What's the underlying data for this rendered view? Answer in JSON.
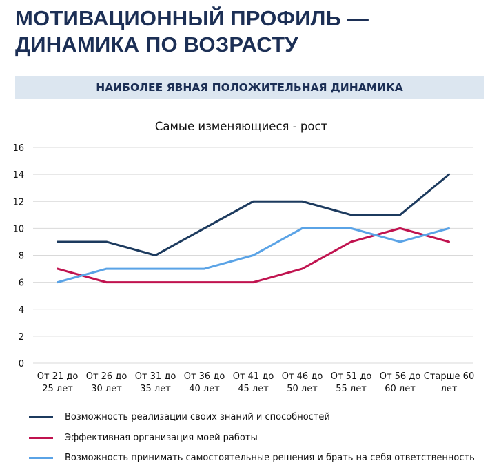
{
  "slide": {
    "title": "МОТИВАЦИОННЫЙ ПРОФИЛЬ —\nДИНАМИКА ПО ВОЗРАСТУ",
    "banner": "НАИБОЛЕЕ ЯВНАЯ ПОЛОЖИТЕЛЬНАЯ ДИНАМИКА"
  },
  "chart_data": {
    "type": "line",
    "title": "Самые изменяющиеся - рост",
    "categories": [
      "От 21 до\n25 лет",
      "От 26 до\n30 лет",
      "От 31 до\n35 лет",
      "От 36 до\n40 лет",
      "От 41 до\n45 лет",
      "От 46 до\n50 лет",
      "От 51 до\n55 лет",
      "От 56 до\n60 лет",
      "Старше 60\nлет"
    ],
    "ylim": [
      0,
      16
    ],
    "yticks": [
      0,
      2,
      4,
      6,
      8,
      10,
      12,
      14,
      16
    ],
    "grid": true,
    "legend_position": "bottom",
    "series": [
      {
        "name": "Возможность реализации своих знаний и способностей",
        "color": "#1c3a5e",
        "values": [
          9,
          9,
          8,
          10,
          12,
          12,
          11,
          11,
          14
        ]
      },
      {
        "name": "Эффективная организация моей работы",
        "color": "#c0134f",
        "values": [
          7,
          6,
          6,
          6,
          6,
          7,
          9,
          10,
          9
        ]
      },
      {
        "name": "Возможность принимать самостоятельные решения и брать на себя ответственность",
        "color": "#5aa3e6",
        "values": [
          6,
          7,
          7,
          7,
          8,
          10,
          10,
          9,
          10
        ]
      }
    ]
  }
}
